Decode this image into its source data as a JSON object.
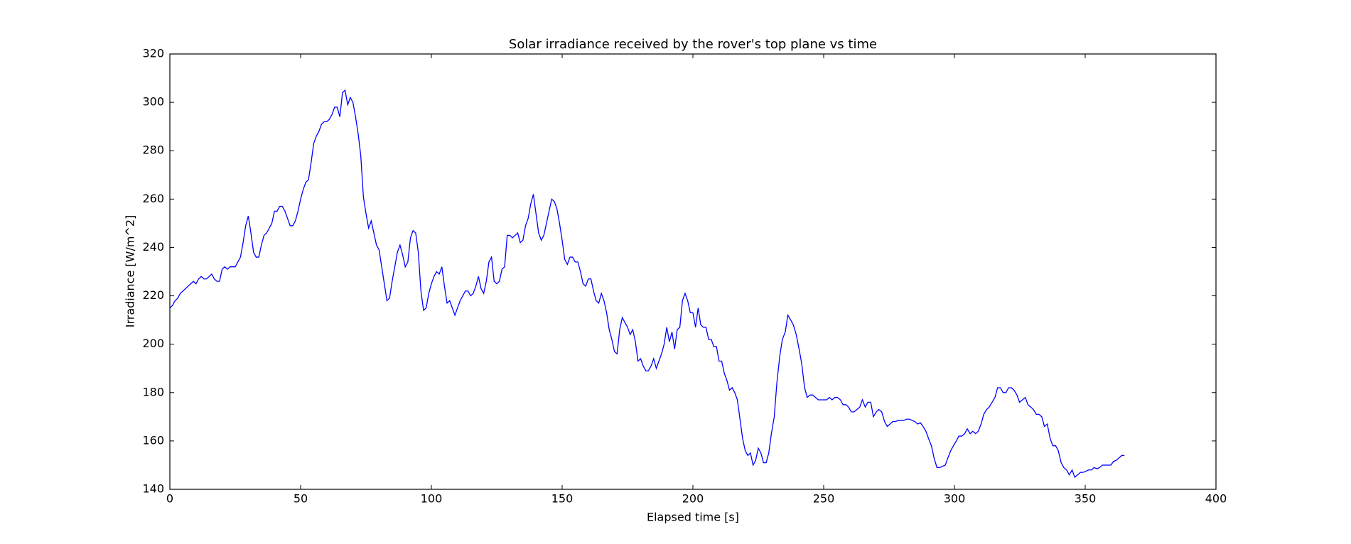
{
  "chart_data": {
    "type": "line",
    "title": "Solar irradiance received by the rover's top plane vs time",
    "xlabel": "Elapsed time [s]",
    "ylabel": "Irradiance [W/m^2]",
    "xlim": [
      0,
      400
    ],
    "xticks": [
      0,
      50,
      100,
      150,
      200,
      250,
      300,
      350,
      400
    ],
    "ylim": [
      140,
      320
    ],
    "yticks": [
      140,
      160,
      180,
      200,
      220,
      240,
      260,
      280,
      300,
      320
    ],
    "x": [
      0,
      1,
      2,
      3,
      4,
      5,
      6,
      7,
      8,
      9,
      10,
      11,
      12,
      13,
      14,
      15,
      16,
      17,
      18,
      19,
      20,
      21,
      22,
      23,
      24,
      25,
      26,
      27,
      28,
      29,
      30,
      31,
      32,
      33,
      34,
      35,
      36,
      37,
      38,
      39,
      40,
      41,
      42,
      43,
      44,
      45,
      46,
      47,
      48,
      49,
      50,
      51,
      52,
      53,
      54,
      55,
      56,
      57,
      58,
      59,
      60,
      61,
      62,
      63,
      64,
      65,
      66,
      67,
      68,
      69,
      70,
      71,
      72,
      73,
      74,
      75,
      76,
      77,
      78,
      79,
      80,
      81,
      82,
      83,
      84,
      85,
      86,
      87,
      88,
      89,
      90,
      91,
      92,
      93,
      94,
      95,
      96,
      97,
      98,
      99,
      100,
      101,
      102,
      103,
      104,
      105,
      106,
      107,
      108,
      109,
      110,
      111,
      112,
      113,
      114,
      115,
      116,
      117,
      118,
      119,
      120,
      121,
      122,
      123,
      124,
      125,
      126,
      127,
      128,
      129,
      130,
      131,
      132,
      133,
      134,
      135,
      136,
      137,
      138,
      139,
      140,
      141,
      142,
      143,
      144,
      145,
      146,
      147,
      148,
      149,
      150,
      151,
      152,
      153,
      154,
      155,
      156,
      157,
      158,
      159,
      160,
      161,
      162,
      163,
      164,
      165,
      166,
      167,
      168,
      169,
      170,
      171,
      172,
      173,
      174,
      175,
      176,
      177,
      178,
      179,
      180,
      181,
      182,
      183,
      184,
      185,
      186,
      187,
      188,
      189,
      190,
      191,
      192,
      193,
      194,
      195,
      196,
      197,
      198,
      199,
      200,
      201,
      202,
      203,
      204,
      205,
      206,
      207,
      208,
      209,
      210,
      211,
      212,
      213,
      214,
      215,
      216,
      217,
      218,
      219,
      220,
      221,
      222,
      223,
      224,
      225,
      226,
      227,
      228,
      229,
      230,
      231.1,
      232.1,
      233.2,
      234.2,
      235.3,
      236.3,
      237.4,
      238.4,
      239.5,
      240.6,
      241.6,
      242.7,
      243.7,
      244.8,
      245.8,
      246.9,
      247.9,
      249.0,
      250.0,
      251.1,
      252.2,
      253.2,
      254.3,
      255.3,
      256.4,
      257.4,
      258.5,
      259.5,
      260.6,
      261.6,
      262.7,
      263.8,
      264.8,
      265.9,
      266.9,
      268.0,
      269.0,
      270.1,
      271.1,
      272.2,
      273.3,
      274.3,
      275.4,
      276.4,
      277.5,
      278.5,
      279.6,
      280.6,
      281.7,
      282.8,
      283.8,
      284.9,
      285.9,
      287.0,
      288.0,
      289.1,
      290.1,
      291.2,
      292.2,
      293.3,
      294.4,
      295.4,
      296.5,
      297.5,
      298.6,
      299.6,
      300.7,
      301.7,
      302.8,
      303.9,
      304.9,
      306.0,
      307.0,
      308.1,
      309.1,
      310.2,
      311.2,
      312.3,
      313.3,
      314.4,
      315.5,
      316.5,
      317.6,
      318.6,
      319.7,
      320.7,
      321.8,
      322.8,
      323.9,
      324.9,
      326.0,
      327.1,
      328.1,
      329.2,
      330.2,
      331.3,
      332.3,
      333.4,
      334.4,
      335.5,
      336.6,
      337.6,
      338.7,
      339.7,
      340.8,
      341.8,
      342.9,
      343.9,
      345.0,
      346.0,
      347.1,
      348.2,
      349.2,
      350.3,
      351.3,
      352.4,
      353.4,
      354.5,
      355.5,
      356.6,
      357.7,
      358.7,
      359.8,
      360.8,
      361.9,
      362.9,
      364.0,
      365.0
    ],
    "series": [
      {
        "color": "#0000ff",
        "values": [
          215,
          216,
          218,
          219,
          221,
          222,
          223,
          224,
          225,
          226,
          225,
          227,
          228,
          227,
          227,
          228,
          229,
          227,
          226,
          226,
          231,
          232,
          231,
          232,
          232,
          232,
          234,
          236,
          242,
          249,
          253,
          246,
          238,
          236,
          236,
          241,
          245,
          246,
          248,
          250,
          255,
          255,
          257,
          257,
          255,
          252,
          249,
          249,
          251,
          255,
          260,
          264,
          267,
          268,
          275,
          283,
          286,
          288,
          291,
          292,
          292,
          293,
          295,
          298,
          298,
          294,
          304,
          305,
          299,
          302,
          300,
          294,
          287,
          278,
          261,
          254,
          248,
          251,
          246,
          241,
          239,
          232,
          225,
          218,
          219,
          226,
          232,
          238,
          241,
          237,
          232,
          234,
          244,
          247,
          246,
          238,
          222,
          214,
          215,
          221,
          225,
          228,
          230,
          229,
          232,
          224,
          217,
          218,
          215,
          212,
          215,
          218,
          220,
          222,
          222,
          220,
          221,
          224,
          228,
          223,
          221,
          226,
          234,
          236,
          226,
          225,
          226,
          231,
          232,
          245,
          245,
          244,
          245,
          246,
          242,
          243,
          249,
          252,
          258,
          262,
          254,
          246,
          243,
          245,
          250,
          255,
          260,
          259,
          256,
          250,
          243,
          235,
          233,
          236,
          236,
          234,
          234,
          230,
          225,
          224,
          227,
          227,
          222,
          218,
          217,
          221,
          218,
          213,
          206,
          202,
          197,
          196,
          206,
          211,
          209,
          207,
          204,
          206,
          201,
          193,
          194,
          191,
          189,
          189,
          191,
          194,
          190,
          193,
          196,
          200,
          207,
          201,
          205,
          198,
          206,
          207,
          218,
          221,
          218,
          213,
          213,
          207,
          215,
          208,
          207,
          207,
          202,
          202,
          199,
          199,
          193,
          193,
          188,
          185,
          181,
          182,
          180,
          177,
          169,
          161,
          156,
          154,
          155,
          150,
          152,
          157,
          155,
          151,
          151,
          155,
          163,
          170,
          184,
          195,
          202,
          205,
          212,
          210,
          208,
          204,
          198,
          192,
          182,
          178,
          179,
          179,
          178,
          177,
          177,
          177,
          177,
          178,
          177,
          178,
          178,
          177,
          175,
          175,
          174,
          172,
          172,
          173,
          174,
          177,
          174,
          176,
          176,
          170,
          172,
          173,
          172,
          168,
          166,
          167,
          168,
          168,
          168.5,
          168.5,
          168.5,
          169,
          169,
          168.5,
          168,
          167,
          167.5,
          166,
          164,
          161,
          158,
          153,
          149,
          149,
          149.5,
          150,
          153,
          156,
          158,
          160,
          162,
          162,
          163,
          165,
          163,
          164,
          163,
          164,
          167,
          171,
          173,
          174,
          176,
          178,
          182,
          182,
          180,
          180,
          182,
          182,
          181,
          179,
          176,
          177,
          178,
          175,
          174,
          173,
          171,
          171,
          170,
          166,
          167,
          161,
          158,
          158,
          156,
          151,
          149,
          148,
          146,
          148,
          145,
          146,
          147,
          147,
          147.5,
          148,
          148,
          149,
          148.5,
          149,
          150,
          150,
          150,
          150,
          151.5,
          152,
          153,
          154,
          154
        ]
      }
    ],
    "grid": false
  }
}
